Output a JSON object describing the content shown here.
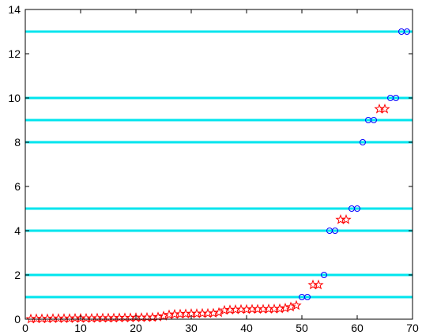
{
  "chart_data": {
    "type": "scatter",
    "xlim": [
      0,
      70
    ],
    "ylim": [
      0,
      14
    ],
    "x_ticks": [
      0,
      10,
      20,
      30,
      40,
      50,
      60,
      70
    ],
    "y_ticks": [
      0,
      2,
      4,
      6,
      8,
      10,
      12,
      14
    ],
    "x_tick_labels": [
      "0",
      "10",
      "20",
      "30",
      "40",
      "50",
      "60",
      "70"
    ],
    "y_tick_labels": [
      "0",
      "2",
      "4",
      "6",
      "8",
      "10",
      "12",
      "14"
    ],
    "grid": false,
    "horizontal_lines": {
      "color": "#00e5ee",
      "y": [
        1,
        2,
        4,
        5,
        8,
        9,
        10,
        13
      ]
    },
    "series": [
      {
        "marker": "star",
        "color": "#ff0000",
        "points": [
          [
            1,
            0.01
          ],
          [
            2,
            0.02
          ],
          [
            3,
            0.02
          ],
          [
            4,
            0.02
          ],
          [
            5,
            0.03
          ],
          [
            6,
            0.03
          ],
          [
            7,
            0.03
          ],
          [
            8,
            0.03
          ],
          [
            9,
            0.04
          ],
          [
            10,
            0.04
          ],
          [
            11,
            0.04
          ],
          [
            12,
            0.04
          ],
          [
            13,
            0.05
          ],
          [
            14,
            0.05
          ],
          [
            15,
            0.05
          ],
          [
            16,
            0.05
          ],
          [
            17,
            0.06
          ],
          [
            18,
            0.06
          ],
          [
            19,
            0.06
          ],
          [
            20,
            0.07
          ],
          [
            21,
            0.07
          ],
          [
            22,
            0.08
          ],
          [
            23,
            0.08
          ],
          [
            24,
            0.1
          ],
          [
            25,
            0.14
          ],
          [
            26,
            0.2
          ],
          [
            27,
            0.22
          ],
          [
            28,
            0.23
          ],
          [
            29,
            0.24
          ],
          [
            30,
            0.25
          ],
          [
            31,
            0.25
          ],
          [
            32,
            0.26
          ],
          [
            33,
            0.26
          ],
          [
            34,
            0.27
          ],
          [
            35,
            0.3
          ],
          [
            36,
            0.4
          ],
          [
            37,
            0.42
          ],
          [
            38,
            0.43
          ],
          [
            39,
            0.44
          ],
          [
            40,
            0.44
          ],
          [
            41,
            0.45
          ],
          [
            42,
            0.45
          ],
          [
            43,
            0.45
          ],
          [
            44,
            0.46
          ],
          [
            45,
            0.46
          ],
          [
            46,
            0.47
          ],
          [
            47,
            0.5
          ],
          [
            48,
            0.55
          ],
          [
            49,
            0.62
          ],
          [
            52,
            1.55
          ],
          [
            53,
            1.55
          ],
          [
            57,
            4.5
          ],
          [
            58,
            4.5
          ],
          [
            64,
            9.5
          ],
          [
            65,
            9.5
          ]
        ]
      },
      {
        "marker": "circle",
        "color": "#0000ff",
        "points": [
          [
            50,
            1
          ],
          [
            51,
            1
          ],
          [
            54,
            2
          ],
          [
            55,
            4
          ],
          [
            56,
            4
          ],
          [
            59,
            5
          ],
          [
            60,
            5
          ],
          [
            61,
            8
          ],
          [
            62,
            9
          ],
          [
            63,
            9
          ],
          [
            66,
            10
          ],
          [
            67,
            10
          ],
          [
            68,
            13
          ],
          [
            69,
            13
          ]
        ]
      }
    ]
  }
}
